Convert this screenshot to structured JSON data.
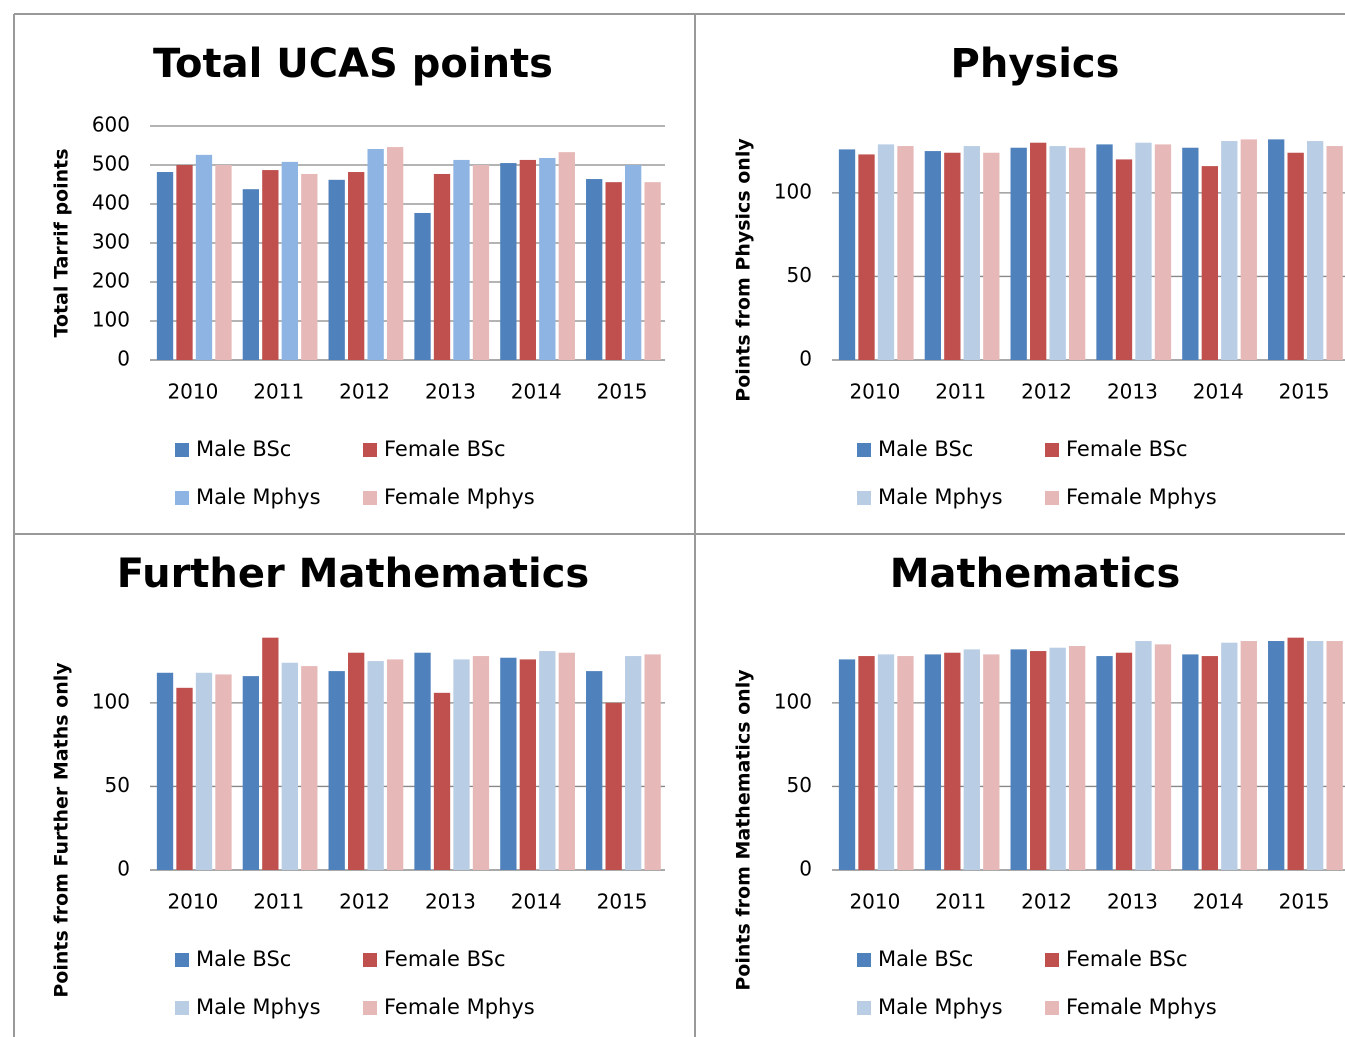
{
  "chart_data": [
    {
      "type": "bar",
      "title": "Total UCAS points",
      "y_label": "Total Tarrif points",
      "categories": [
        "2010",
        "2011",
        "2012",
        "2013",
        "2014",
        "2015"
      ],
      "series": [
        {
          "name": "Male BSc",
          "color": "#4f81bd",
          "values": [
            482,
            438,
            462,
            377,
            505,
            464
          ]
        },
        {
          "name": "Female BSc",
          "color": "#c0504d",
          "values": [
            500,
            487,
            482,
            477,
            513,
            456
          ]
        },
        {
          "name": "Male Mphys",
          "color": "#8db4e2",
          "values": [
            526,
            508,
            541,
            513,
            518,
            500
          ]
        },
        {
          "name": "Female Mphys",
          "color": "#e6b9b8",
          "values": [
            500,
            477,
            546,
            500,
            533,
            456
          ]
        }
      ],
      "ylim": [
        0,
        600
      ],
      "yticks": [
        0,
        100,
        200,
        300,
        400,
        500,
        600
      ],
      "grid": true,
      "legend": "bottom"
    },
    {
      "type": "bar",
      "title": "Physics",
      "y_label": "Points from Physics only",
      "categories": [
        "2010",
        "2011",
        "2012",
        "2013",
        "2014",
        "2015"
      ],
      "series": [
        {
          "name": "Male BSc",
          "color": "#4f81bd",
          "values": [
            126,
            125,
            127,
            129,
            127,
            132
          ]
        },
        {
          "name": "Female BSc",
          "color": "#c0504d",
          "values": [
            123,
            124,
            130,
            120,
            116,
            124
          ]
        },
        {
          "name": "Male Mphys",
          "color": "#b9cde5",
          "values": [
            129,
            128,
            128,
            130,
            131,
            131
          ]
        },
        {
          "name": "Female Mphys",
          "color": "#e6b9b8",
          "values": [
            128,
            124,
            127,
            129,
            132,
            128
          ]
        }
      ],
      "ylim": [
        0,
        140
      ],
      "yticks": [
        0,
        50,
        100
      ],
      "grid": true,
      "legend": "bottom"
    },
    {
      "type": "bar",
      "title": "Further Mathematics",
      "y_label": "Points from Further Maths only",
      "categories": [
        "2010",
        "2011",
        "2012",
        "2013",
        "2014",
        "2015"
      ],
      "series": [
        {
          "name": "Male BSc",
          "color": "#4f81bd",
          "values": [
            118,
            116,
            119,
            130,
            127,
            119
          ]
        },
        {
          "name": "Female BSc",
          "color": "#c0504d",
          "values": [
            109,
            139,
            130,
            106,
            126,
            100
          ]
        },
        {
          "name": "Male Mphys",
          "color": "#b9cde5",
          "values": [
            118,
            124,
            125,
            126,
            131,
            128
          ]
        },
        {
          "name": "Female Mphys",
          "color": "#e6b9b8",
          "values": [
            117,
            122,
            126,
            128,
            130,
            129
          ]
        }
      ],
      "ylim": [
        0,
        140
      ],
      "yticks": [
        0,
        50,
        100
      ],
      "grid": true,
      "legend": "bottom"
    },
    {
      "type": "bar",
      "title": "Mathematics",
      "y_label": "Points from Mathematics only",
      "categories": [
        "2010",
        "2011",
        "2012",
        "2013",
        "2014",
        "2015"
      ],
      "series": [
        {
          "name": "Male BSc",
          "color": "#4f81bd",
          "values": [
            126,
            129,
            132,
            128,
            129,
            137
          ]
        },
        {
          "name": "Female BSc",
          "color": "#c0504d",
          "values": [
            128,
            130,
            131,
            130,
            128,
            139
          ]
        },
        {
          "name": "Male Mphys",
          "color": "#b9cde5",
          "values": [
            129,
            132,
            133,
            137,
            136,
            137
          ]
        },
        {
          "name": "Female Mphys",
          "color": "#e6b9b8",
          "values": [
            128,
            129,
            134,
            135,
            137,
            137
          ]
        }
      ],
      "ylim": [
        0,
        140
      ],
      "yticks": [
        0,
        50,
        100
      ],
      "grid": true,
      "legend": "bottom"
    }
  ]
}
